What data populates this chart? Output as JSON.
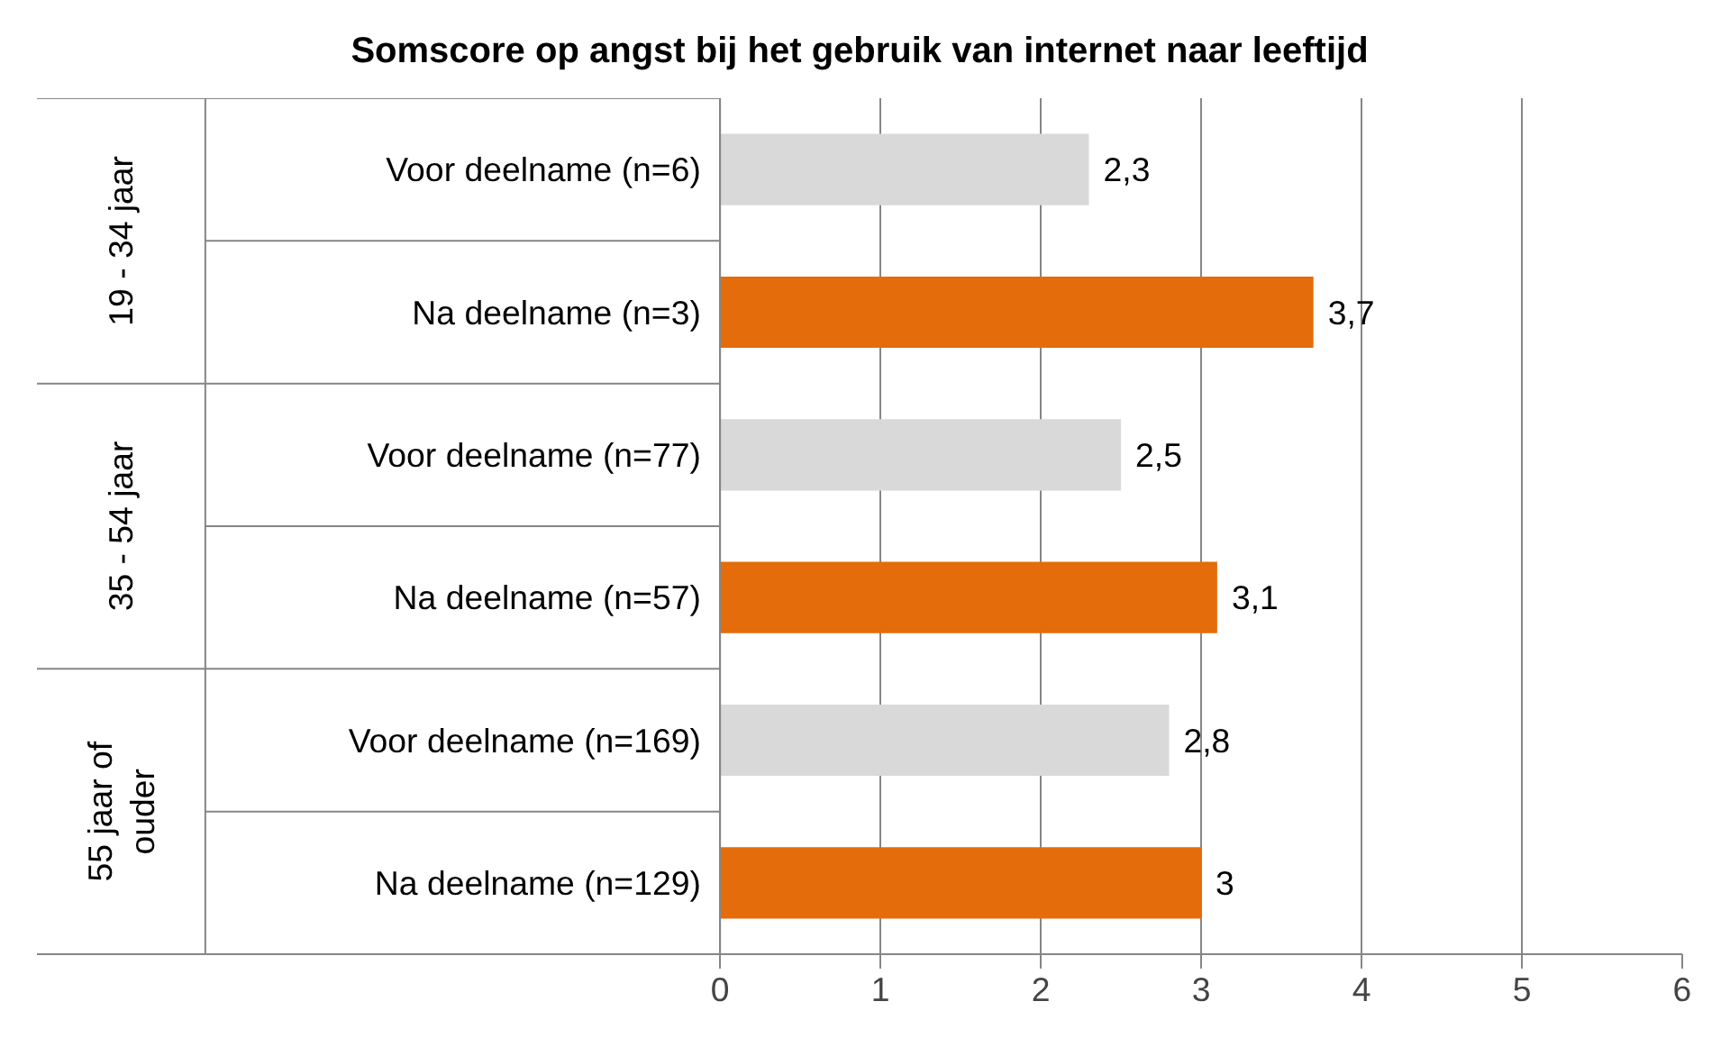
{
  "chart_data": {
    "type": "bar",
    "orientation": "horizontal",
    "title": "Somscore op angst bij het gebruik van internet naar leeftijd",
    "categories": [
      "Voor deelname (n=6)",
      "Na deelname (n=3)",
      "Voor deelname (n=77)",
      "Na deelname (n=57)",
      "Voor deelname (n=169)",
      "Na deelname (n=129)"
    ],
    "values": [
      2.3,
      3.7,
      2.5,
      3.1,
      2.8,
      3
    ],
    "colors": [
      "#d9d9d9",
      "#e46c0a",
      "#d9d9d9",
      "#e46c0a",
      "#d9d9d9",
      "#e46c0a"
    ],
    "value_labels": [
      "2,3",
      "3,7",
      "2,5",
      "3,1",
      "2,8",
      "3"
    ],
    "annotations": [
      "19 - 34 jaar",
      "35 - 54 jaar",
      "55 jaar of\nouder"
    ],
    "xlim": [
      0,
      6
    ],
    "xticks": [
      0,
      1,
      2,
      3,
      4,
      5,
      6
    ],
    "grid": "x"
  }
}
